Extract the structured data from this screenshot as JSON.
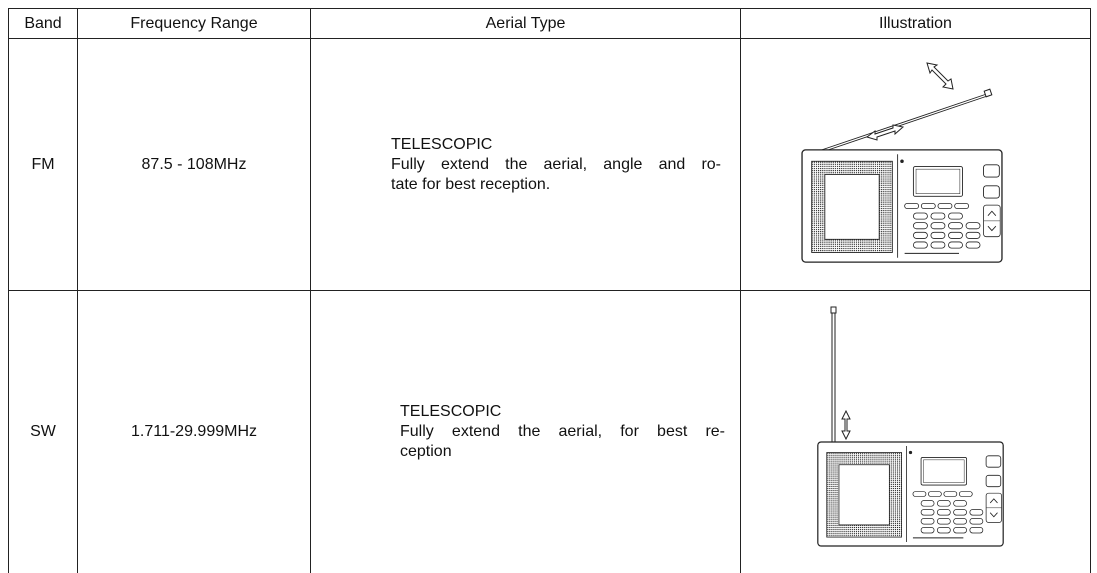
{
  "table": {
    "header": [
      "Band",
      "Frequency Range",
      "Aerial Type",
      "Illustration"
    ],
    "rows": [
      {
        "band": "FM",
        "frequency": "87.5 - 108MHz",
        "aerial": {
          "title": "TELESCOPIC",
          "lines": [
            "Fully extend the aerial, angle and ro-",
            "tate for best reception."
          ]
        }
      },
      {
        "band": "SW",
        "frequency": "1.711-29.999MHz",
        "aerial": {
          "title": "TELESCOPIC",
          "lines": [
            "Fully extend the aerial, for best re-",
            "ception"
          ]
        }
      }
    ]
  }
}
